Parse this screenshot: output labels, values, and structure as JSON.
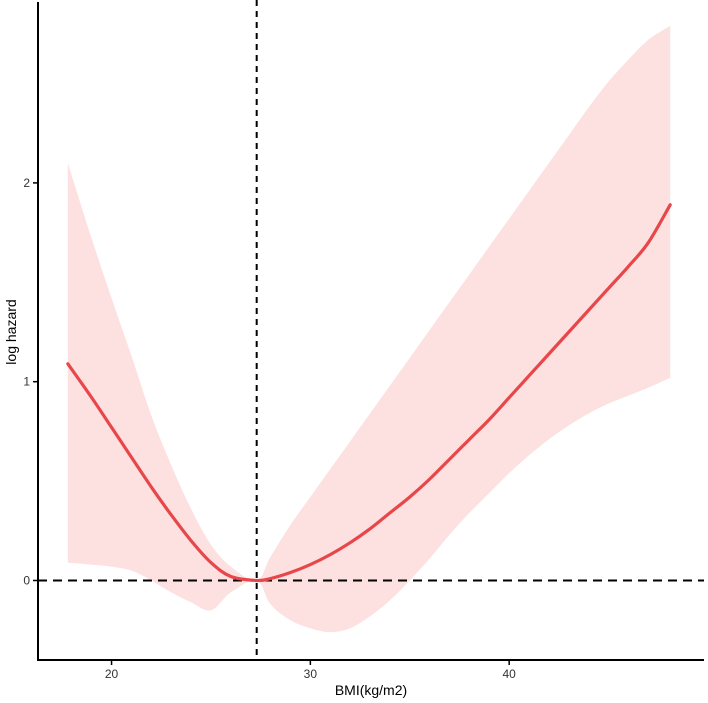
{
  "chart_data": {
    "type": "line",
    "title": "",
    "xlabel": "BMI(kg/m2)",
    "ylabel": "log hazard",
    "xlim": [
      16.3,
      49.8
    ],
    "ylim": [
      -0.4,
      2.9
    ],
    "x_ticks": [
      20,
      30,
      40
    ],
    "y_ticks": [
      0,
      1,
      2
    ],
    "x_tick_labels": [
      "20",
      "30",
      "40"
    ],
    "y_tick_labels": [
      "0",
      "1",
      "2"
    ],
    "reference_lines": {
      "vertical_x": 27.3,
      "horizontal_y": 0
    },
    "grid": false,
    "legend": "none",
    "colors": {
      "line": "#e8474a",
      "band": "#fde0e0",
      "reference": "#000000",
      "axis": "#000000"
    },
    "series": [
      {
        "x": [
          17.8,
          19,
          20,
          21,
          22,
          23,
          24,
          25,
          26,
          27.3,
          28,
          29,
          30,
          31,
          32,
          33,
          34,
          35,
          36,
          37,
          38,
          39,
          40,
          41,
          42,
          43,
          44,
          45,
          46,
          47,
          48.1
        ],
        "y": [
          1.09,
          0.92,
          0.77,
          0.62,
          0.47,
          0.33,
          0.2,
          0.09,
          0.02,
          0.0,
          0.01,
          0.04,
          0.08,
          0.13,
          0.19,
          0.26,
          0.34,
          0.42,
          0.51,
          0.61,
          0.71,
          0.81,
          0.92,
          1.03,
          1.14,
          1.25,
          1.36,
          1.47,
          1.58,
          1.7,
          1.89
        ],
        "lower": [
          0.09,
          0.08,
          0.07,
          0.05,
          0.0,
          -0.06,
          -0.11,
          -0.15,
          -0.06,
          0.0,
          -0.12,
          -0.2,
          -0.24,
          -0.26,
          -0.24,
          -0.18,
          -0.1,
          0.0,
          0.11,
          0.23,
          0.34,
          0.44,
          0.54,
          0.63,
          0.71,
          0.78,
          0.84,
          0.89,
          0.93,
          0.97,
          1.02
        ],
        "upper": [
          2.1,
          1.72,
          1.42,
          1.13,
          0.83,
          0.58,
          0.36,
          0.18,
          0.07,
          0.0,
          0.12,
          0.28,
          0.42,
          0.56,
          0.7,
          0.84,
          0.98,
          1.12,
          1.26,
          1.4,
          1.54,
          1.68,
          1.82,
          1.96,
          2.1,
          2.24,
          2.38,
          2.51,
          2.62,
          2.72,
          2.79
        ]
      }
    ]
  }
}
